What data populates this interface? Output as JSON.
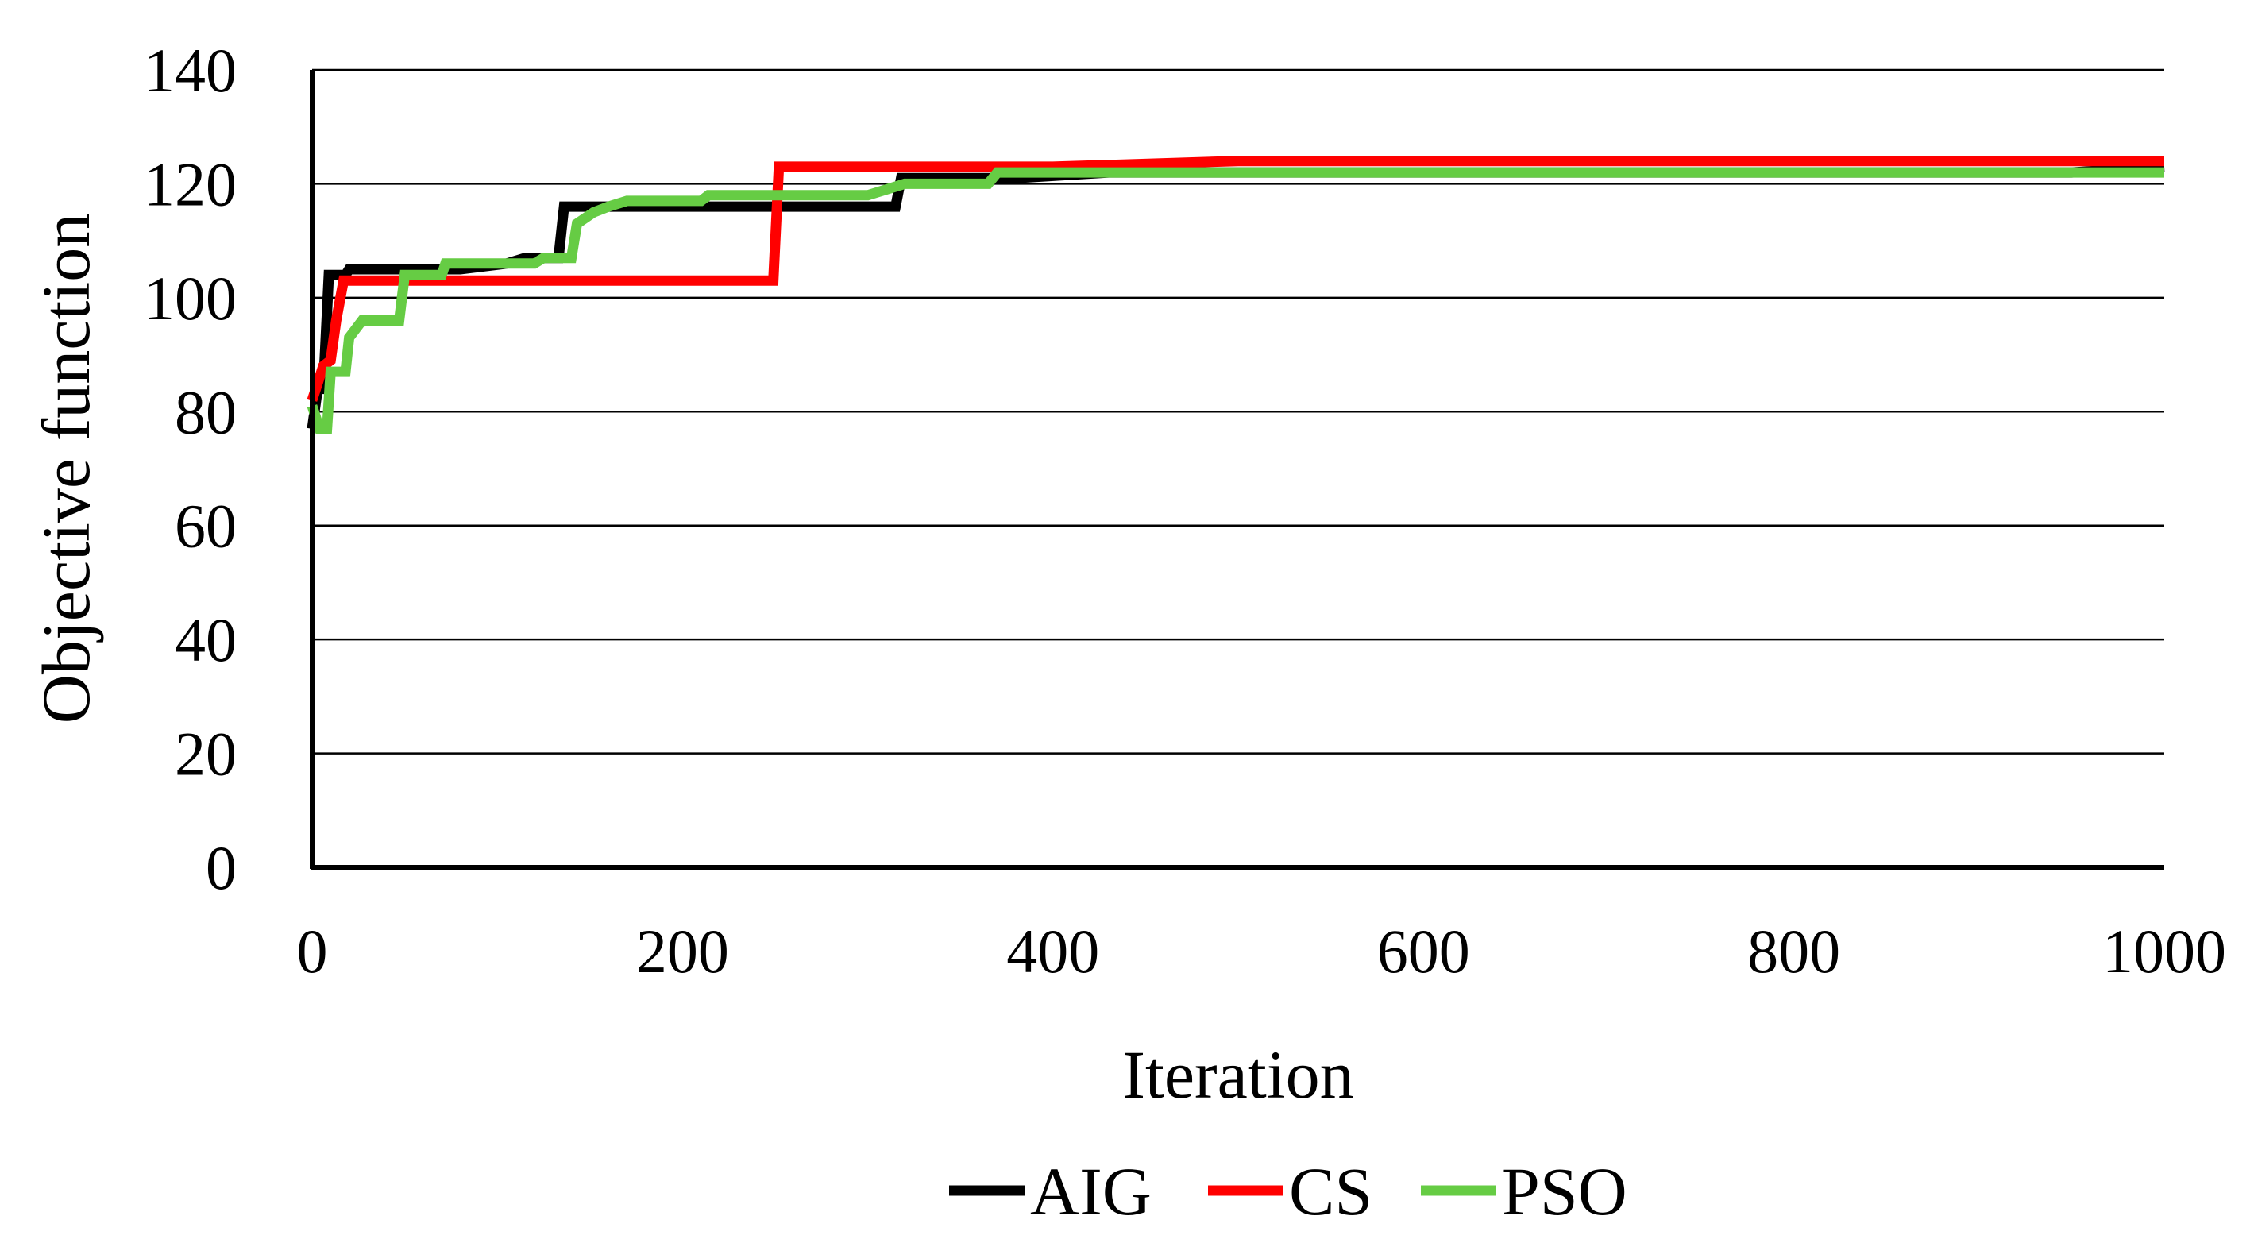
{
  "chart_data": {
    "type": "line",
    "xlabel": "Iteration",
    "ylabel": "Objective function",
    "xlim": [
      0,
      1000
    ],
    "ylim": [
      0,
      140
    ],
    "x_ticks": [
      "0",
      "200",
      "400",
      "600",
      "800",
      "1000"
    ],
    "y_ticks": [
      "0",
      "20",
      "40",
      "60",
      "80",
      "100",
      "120",
      "140"
    ],
    "grid": "horizontal",
    "legend_position": "bottom",
    "series": [
      {
        "name": "AIG",
        "color": "#000000",
        "points": [
          [
            0,
            77
          ],
          [
            3,
            84
          ],
          [
            6,
            84
          ],
          [
            9,
            104
          ],
          [
            18,
            104
          ],
          [
            20,
            105
          ],
          [
            80,
            105
          ],
          [
            105,
            106
          ],
          [
            115,
            107
          ],
          [
            133,
            107
          ],
          [
            136,
            116
          ],
          [
            150,
            116
          ],
          [
            200,
            116
          ],
          [
            315,
            116
          ],
          [
            318,
            121
          ],
          [
            350,
            121
          ],
          [
            380,
            121
          ],
          [
            430,
            122
          ],
          [
            700,
            122
          ],
          [
            950,
            122
          ],
          [
            1000,
            123
          ]
        ]
      },
      {
        "name": "CS",
        "color": "#ff0000",
        "points": [
          [
            0,
            82
          ],
          [
            6,
            88
          ],
          [
            10,
            89
          ],
          [
            13,
            96
          ],
          [
            17,
            103
          ],
          [
            50,
            103
          ],
          [
            100,
            103
          ],
          [
            249,
            103
          ],
          [
            252,
            123
          ],
          [
            300,
            123
          ],
          [
            400,
            123
          ],
          [
            500,
            124
          ],
          [
            1000,
            124
          ]
        ]
      },
      {
        "name": "PSO",
        "color": "#66cc44",
        "points": [
          [
            0,
            81
          ],
          [
            4,
            77
          ],
          [
            8,
            77
          ],
          [
            10,
            87
          ],
          [
            18,
            87
          ],
          [
            20,
            93
          ],
          [
            27,
            96
          ],
          [
            35,
            96
          ],
          [
            47,
            96
          ],
          [
            50,
            104
          ],
          [
            70,
            104
          ],
          [
            72,
            106
          ],
          [
            100,
            106
          ],
          [
            120,
            106
          ],
          [
            125,
            107
          ],
          [
            140,
            107
          ],
          [
            143,
            113
          ],
          [
            152,
            115
          ],
          [
            160,
            116
          ],
          [
            170,
            117
          ],
          [
            210,
            117
          ],
          [
            214,
            118
          ],
          [
            250,
            118
          ],
          [
            300,
            118
          ],
          [
            320,
            120
          ],
          [
            365,
            120
          ],
          [
            370,
            122
          ],
          [
            450,
            122
          ],
          [
            600,
            122
          ],
          [
            1000,
            122
          ]
        ]
      }
    ]
  }
}
